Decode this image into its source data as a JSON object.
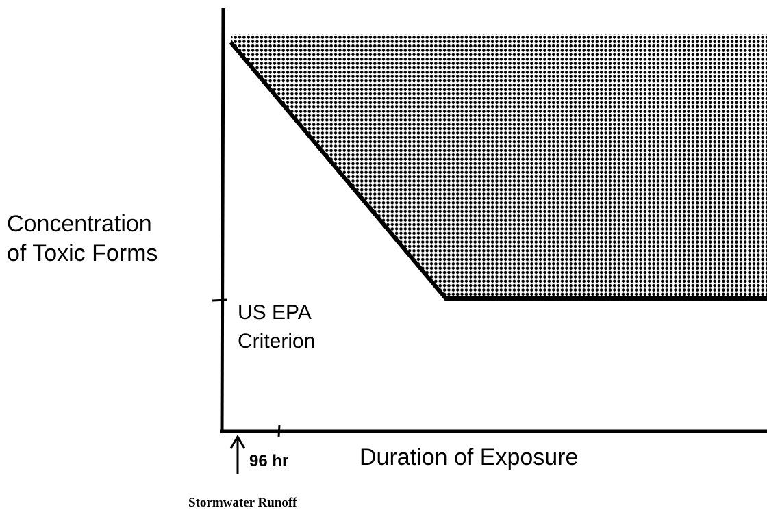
{
  "y_axis_label": [
    "Concentration",
    "of Toxic Forms"
  ],
  "criterion_label": [
    "US EPA",
    "Criterion"
  ],
  "x_tick_label": "96 hr",
  "x_axis_label": "Duration of Exposure",
  "arrow_label": "Stormwater Runoff"
}
